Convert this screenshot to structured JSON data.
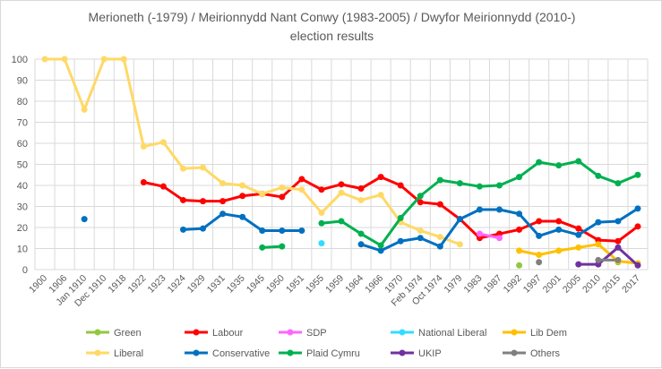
{
  "chart_data": {
    "type": "line",
    "title": "Merioneth (-1979) / Meirionnydd Nant Conwy (1983-2005) / Dwyfor Meirionnydd (2010-)",
    "subtitle": "election results",
    "categories": [
      "1900",
      "1906",
      "Jan 1910",
      "Dec 1910",
      "1918",
      "1922",
      "1923",
      "1924",
      "1929",
      "1931",
      "1935",
      "1945",
      "1950",
      "1951",
      "1955",
      "1959",
      "1964",
      "1966",
      "1970",
      "Feb 1974",
      "Oct 1974",
      "1979",
      "1983",
      "1987",
      "1992",
      "1997",
      "2001",
      "2005",
      "2010",
      "2015",
      "2017"
    ],
    "ylim": [
      0,
      100
    ],
    "yticks": [
      0,
      10,
      20,
      30,
      40,
      50,
      60,
      70,
      80,
      90,
      100
    ],
    "grid": true,
    "legend_position": "bottom",
    "series": [
      {
        "name": "Green",
        "color": "#92c83e",
        "values": [
          null,
          null,
          null,
          null,
          null,
          null,
          null,
          null,
          null,
          null,
          null,
          null,
          null,
          null,
          null,
          null,
          null,
          null,
          null,
          null,
          null,
          null,
          null,
          null,
          2,
          null,
          null,
          null,
          null,
          3.5,
          null
        ]
      },
      {
        "name": "Labour",
        "color": "#ff0000",
        "values": [
          null,
          null,
          null,
          null,
          null,
          41.5,
          39.5,
          33,
          32.5,
          32.5,
          35,
          36,
          34.5,
          43,
          38,
          40.5,
          38.5,
          44,
          40,
          32,
          31,
          24,
          15,
          17,
          19,
          23,
          23,
          19.5,
          14,
          13.5,
          20.5
        ]
      },
      {
        "name": "SDP",
        "color": "#ff66ff",
        "values": [
          null,
          null,
          null,
          null,
          null,
          null,
          null,
          null,
          null,
          null,
          null,
          null,
          null,
          null,
          null,
          null,
          null,
          null,
          null,
          null,
          null,
          null,
          17,
          15,
          null,
          null,
          null,
          null,
          null,
          null,
          null
        ]
      },
      {
        "name": "National Liberal",
        "color": "#33ddff",
        "values": [
          null,
          null,
          null,
          null,
          null,
          null,
          null,
          null,
          null,
          null,
          null,
          null,
          null,
          null,
          12.5,
          null,
          null,
          null,
          null,
          null,
          null,
          null,
          null,
          null,
          null,
          null,
          null,
          null,
          null,
          null,
          null
        ]
      },
      {
        "name": "Lib Dem",
        "color": "#ffc000",
        "values": [
          null,
          null,
          null,
          null,
          null,
          null,
          null,
          null,
          null,
          null,
          null,
          null,
          null,
          null,
          null,
          null,
          null,
          null,
          null,
          null,
          null,
          null,
          null,
          null,
          9,
          7,
          9,
          10.5,
          12,
          4,
          3
        ]
      },
      {
        "name": "Liberal",
        "color": "#ffd966",
        "values": [
          100,
          100,
          76,
          100,
          100,
          58.5,
          60.5,
          48,
          48.5,
          41,
          40,
          36,
          39,
          38,
          27,
          36.5,
          33,
          35.5,
          22.5,
          18.5,
          15.5,
          12,
          null,
          null,
          null,
          null,
          null,
          null,
          null,
          null,
          null
        ]
      },
      {
        "name": "Conservative",
        "color": "#0070c0",
        "values": [
          null,
          null,
          24,
          null,
          null,
          null,
          null,
          19,
          19.5,
          26.5,
          25,
          18.5,
          18.5,
          18.5,
          null,
          null,
          12,
          9,
          13.5,
          15,
          11,
          24,
          28.5,
          28.5,
          26.5,
          16,
          19,
          16.5,
          22.5,
          23,
          29
        ]
      },
      {
        "name": "Plaid Cymru",
        "color": "#00b050",
        "values": [
          null,
          null,
          null,
          null,
          null,
          null,
          null,
          null,
          null,
          null,
          null,
          10.5,
          11,
          null,
          22,
          23,
          17,
          11.5,
          24.5,
          35,
          42.5,
          41,
          39.5,
          40,
          44,
          51,
          49.5,
          51.5,
          44.5,
          41,
          45
        ]
      },
      {
        "name": "UKIP",
        "color": "#7030a0",
        "values": [
          null,
          null,
          null,
          null,
          null,
          null,
          null,
          null,
          null,
          null,
          null,
          null,
          null,
          null,
          null,
          null,
          null,
          null,
          null,
          null,
          null,
          null,
          null,
          null,
          null,
          null,
          null,
          2.5,
          2.5,
          10.5,
          2
        ]
      },
      {
        "name": "Others",
        "color": "#808080",
        "values": [
          null,
          null,
          null,
          null,
          null,
          null,
          null,
          null,
          null,
          null,
          null,
          null,
          null,
          null,
          null,
          null,
          null,
          null,
          null,
          null,
          null,
          null,
          null,
          null,
          null,
          3.5,
          null,
          null,
          4.5,
          4.5,
          null
        ]
      }
    ]
  }
}
